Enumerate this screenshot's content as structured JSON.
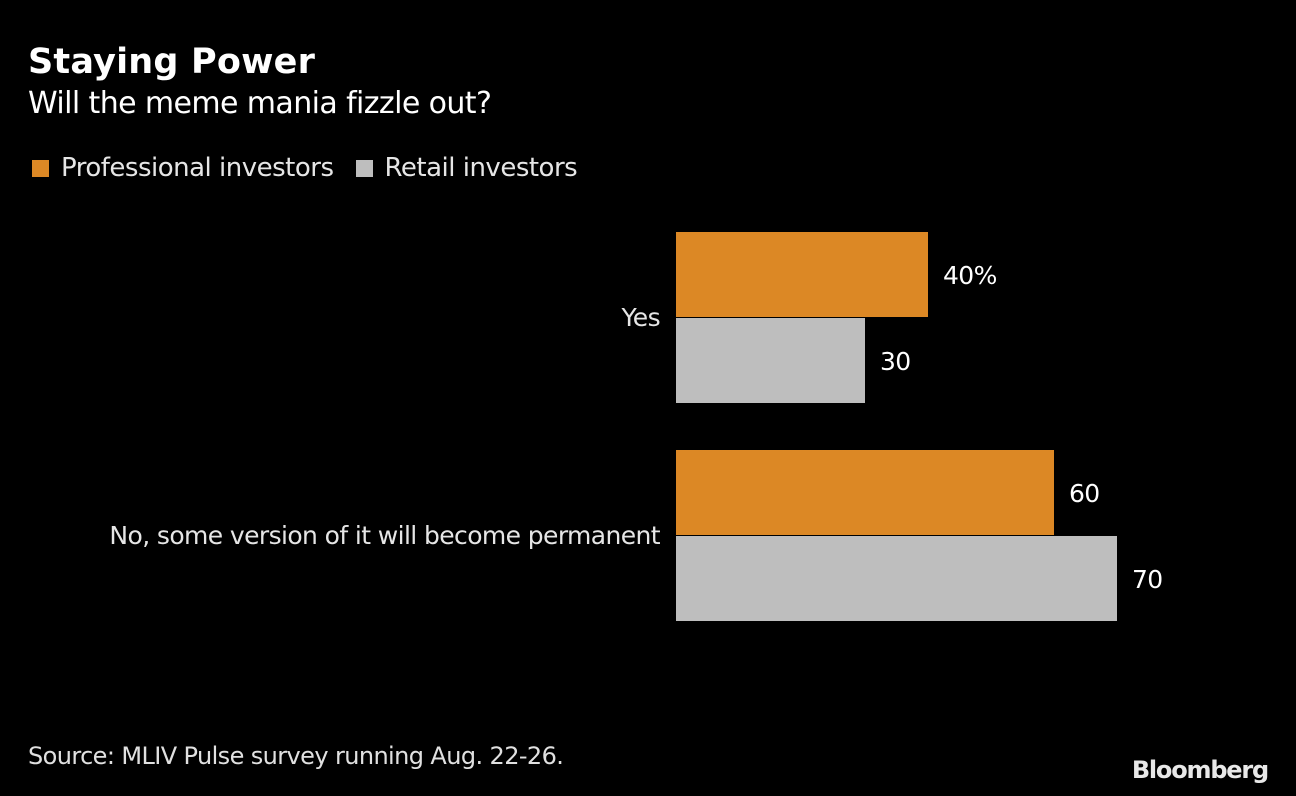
{
  "chart_data": {
    "type": "bar",
    "orientation": "horizontal",
    "title": "Staying Power",
    "subtitle": "Will the meme mania fizzle out?",
    "categories": [
      "Yes",
      "No, some version of it will become permanent"
    ],
    "series": [
      {
        "name": "Professional investors",
        "color": "#dc8825",
        "values": [
          40,
          60
        ],
        "labels": [
          "40%",
          "60"
        ]
      },
      {
        "name": "Retail investors",
        "color": "#bebebe",
        "values": [
          30,
          70
        ],
        "labels": [
          "30",
          "70"
        ]
      }
    ],
    "xlim": [
      0,
      70
    ],
    "grid": false,
    "legend": "top-left",
    "source": "Source: MLIV Pulse survey running Aug. 22-26.",
    "brand": "Bloomberg"
  }
}
